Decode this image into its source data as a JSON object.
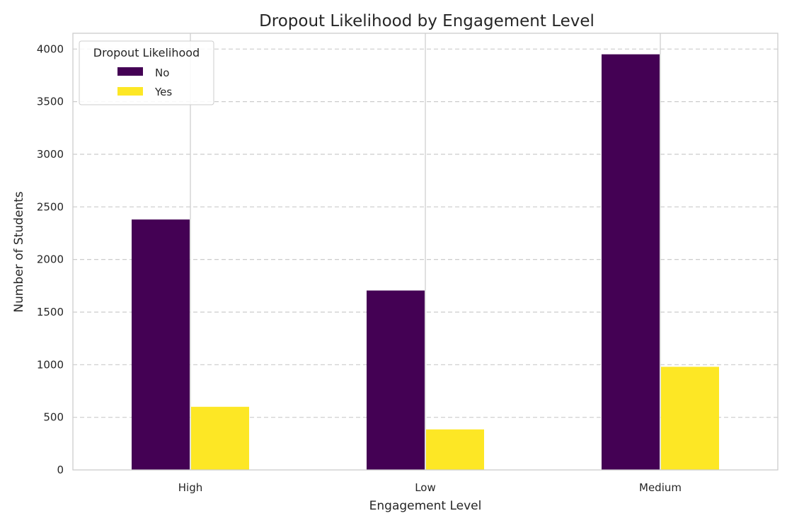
{
  "chart_data": {
    "type": "bar",
    "title": "Dropout Likelihood by Engagement Level",
    "xlabel": "Engagement Level",
    "ylabel": "Number of Students",
    "categories": [
      "High",
      "Low",
      "Medium"
    ],
    "series": [
      {
        "name": "No",
        "values": [
          2380,
          1705,
          3950
        ],
        "color": "#440154"
      },
      {
        "name": "Yes",
        "values": [
          600,
          385,
          980
        ],
        "color": "#fde725"
      }
    ],
    "ylim": [
      0,
      4150
    ],
    "yticks": [
      0,
      500,
      1000,
      1500,
      2000,
      2500,
      3000,
      3500,
      4000
    ],
    "grid": {
      "y": "dashed",
      "x": "solid"
    },
    "legend": {
      "title": "Dropout Likelihood",
      "placement": "top-left"
    }
  }
}
